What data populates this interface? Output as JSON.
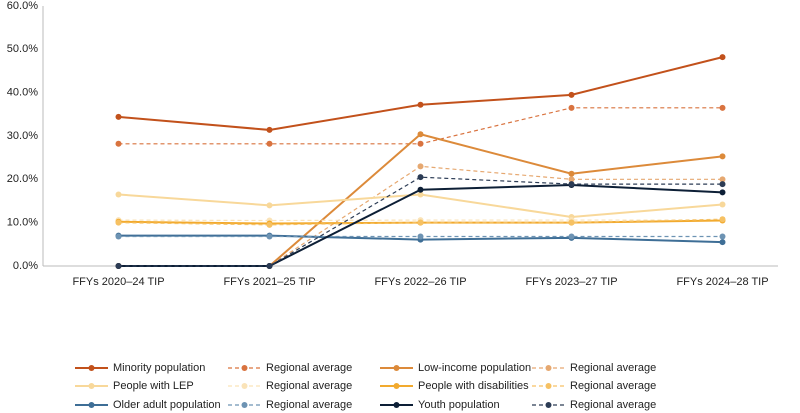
{
  "chart_data": {
    "type": "line",
    "categories": [
      "FFYs 2020–24 TIP",
      "FFYs 2021–25 TIP",
      "FFYs 2022–26 TIP",
      "FFYs 2023–27 TIP",
      "FFYs 2024–28 TIP"
    ],
    "ylim": [
      0,
      60
    ],
    "yticks": [
      {
        "value": 0,
        "label": "0.0%"
      },
      {
        "value": 10,
        "label": "10.0%"
      },
      {
        "value": 20,
        "label": "20.0%"
      },
      {
        "value": 30,
        "label": "30.0%"
      },
      {
        "value": 40,
        "label": "40.0%"
      },
      {
        "value": 50,
        "label": "50.0%"
      },
      {
        "value": 60,
        "label": "60.0%"
      }
    ],
    "series": [
      {
        "name": "Minority population",
        "color": "#c2511b",
        "dashed": false,
        "values": [
          34.4,
          31.4,
          37.2,
          39.5,
          48.2
        ]
      },
      {
        "name": "Regional average",
        "color": "#d9733f",
        "dashed": true,
        "values": [
          28.2,
          28.2,
          28.2,
          36.5,
          36.5
        ]
      },
      {
        "name": "Low-income population",
        "color": "#dc8a3a",
        "dashed": false,
        "values": [
          0,
          0,
          30.4,
          21.3,
          25.3
        ]
      },
      {
        "name": "Regional average",
        "color": "#e6a870",
        "dashed": true,
        "values": [
          0,
          0,
          23,
          20,
          20
        ]
      },
      {
        "name": "People with LEP",
        "color": "#f8d89a",
        "dashed": false,
        "values": [
          16.5,
          14,
          16.5,
          11.3,
          14.2
        ]
      },
      {
        "name": "Regional average",
        "color": "#fae3b8",
        "dashed": true,
        "values": [
          10.6,
          10.5,
          10.6,
          10.6,
          10.6
        ]
      },
      {
        "name": "People with disabilities",
        "color": "#f2aa2e",
        "dashed": false,
        "values": [
          10.2,
          9.8,
          10,
          10,
          10.5
        ]
      },
      {
        "name": "Regional average",
        "color": "#f6c163",
        "dashed": true,
        "values": [
          10,
          9.5,
          10,
          10,
          10.8
        ]
      },
      {
        "name": "Older adult population",
        "color": "#3e6e96",
        "dashed": false,
        "values": [
          7,
          7,
          6.1,
          6.5,
          5.5
        ]
      },
      {
        "name": "Regional average",
        "color": "#6d93b3",
        "dashed": true,
        "values": [
          6.8,
          6.8,
          6.8,
          6.8,
          6.8
        ]
      },
      {
        "name": "Youth population",
        "color": "#0d1f36",
        "dashed": false,
        "values": [
          0,
          0,
          17.6,
          18.7,
          17
        ]
      },
      {
        "name": "Regional average",
        "color": "#2c3c55",
        "dashed": true,
        "values": [
          0,
          0,
          20.5,
          18.9,
          18.9
        ]
      }
    ]
  }
}
